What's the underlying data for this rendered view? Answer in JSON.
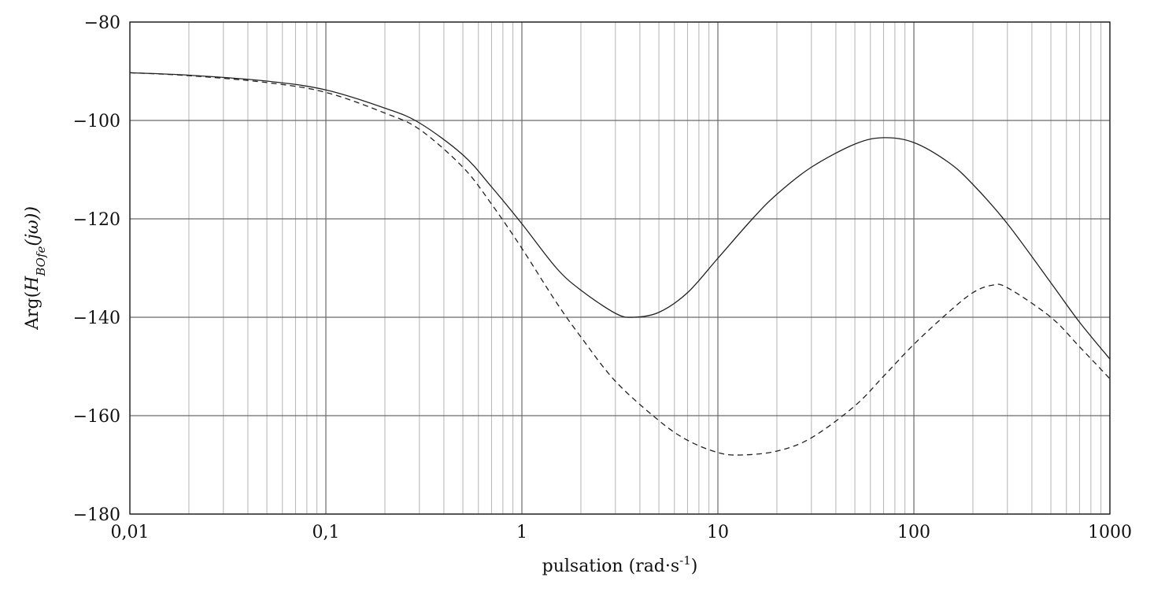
{
  "chart_data": {
    "type": "line",
    "title": "",
    "xlabel": "pulsation (rad·s-1)",
    "xlabel_parts": {
      "text": "pulsation (rad·s",
      "sup": "-1",
      "close": ")"
    },
    "ylabel_parts": {
      "prefix": "Arg(",
      "H": "H",
      "sub": "BOfe",
      "arg": "(jω))"
    },
    "x_scale": "log",
    "xlim": [
      0.01,
      1000
    ],
    "ylim": [
      -180,
      -80
    ],
    "grid": true,
    "x_ticks": [
      {
        "value": 0.01,
        "label": "0,01"
      },
      {
        "value": 0.1,
        "label": "0,1"
      },
      {
        "value": 1,
        "label": "1"
      },
      {
        "value": 10,
        "label": "10"
      },
      {
        "value": 100,
        "label": "100"
      },
      {
        "value": 1000,
        "label": "1000"
      }
    ],
    "y_ticks": [
      {
        "value": -80,
        "label": "−80"
      },
      {
        "value": -100,
        "label": "−100"
      },
      {
        "value": -120,
        "label": "−120"
      },
      {
        "value": -140,
        "label": "−140"
      },
      {
        "value": -160,
        "label": "−160"
      },
      {
        "value": -180,
        "label": "−180"
      }
    ],
    "series": [
      {
        "style": "solid",
        "color": "#222222",
        "x": [
          0.01,
          0.02,
          0.05,
          0.1,
          0.2,
          0.3,
          0.5,
          0.7,
          1,
          1.5,
          2,
          3,
          3.7,
          5,
          7,
          10,
          15,
          20,
          30,
          50,
          70,
          100,
          150,
          200,
          300,
          500,
          700,
          1000
        ],
        "y": [
          -90.3,
          -90.8,
          -92,
          -93.8,
          -97.5,
          -100.5,
          -107,
          -113.5,
          -121,
          -130,
          -134.5,
          -139.2,
          -140,
          -139,
          -135,
          -128,
          -120,
          -115,
          -109.5,
          -104.8,
          -103.5,
          -104.5,
          -108.5,
          -113,
          -121,
          -133,
          -141,
          -148.5
        ]
      },
      {
        "style": "dashed",
        "color": "#222222",
        "x": [
          0.01,
          0.02,
          0.05,
          0.1,
          0.2,
          0.3,
          0.5,
          0.7,
          1,
          1.5,
          2,
          3,
          5,
          7,
          10,
          13,
          20,
          30,
          50,
          70,
          100,
          150,
          200,
          250,
          300,
          500,
          700,
          1000
        ],
        "y": [
          -90.3,
          -90.9,
          -92.3,
          -94.3,
          -98.5,
          -101.8,
          -109.5,
          -117,
          -126,
          -137,
          -144,
          -153,
          -161,
          -165,
          -167.5,
          -168,
          -167.2,
          -164.5,
          -158,
          -152,
          -145.5,
          -139,
          -135,
          -133.5,
          -134,
          -140,
          -146,
          -152.5
        ]
      }
    ]
  }
}
